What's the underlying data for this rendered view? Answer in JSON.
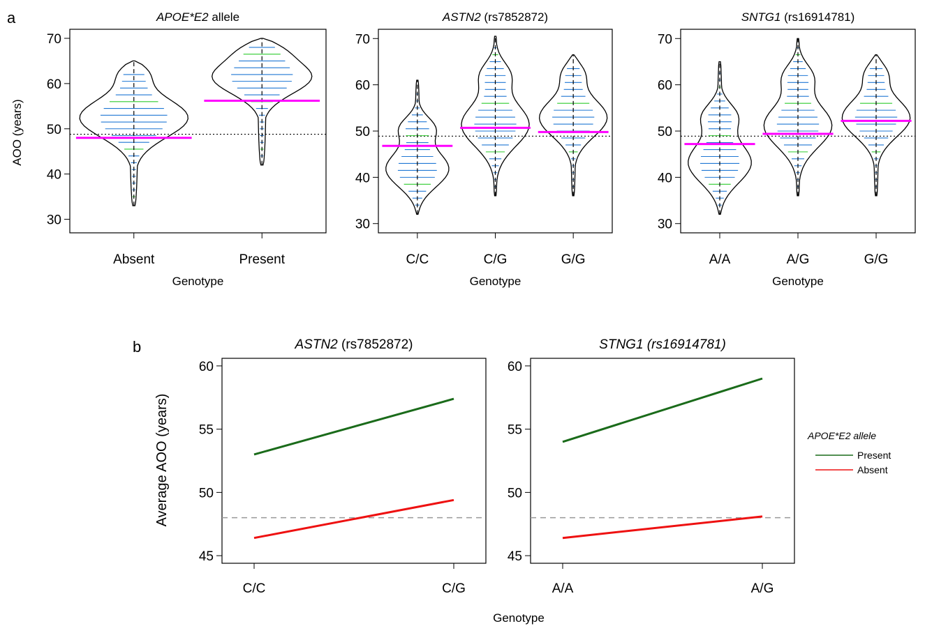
{
  "panel_labels": {
    "a": "a",
    "b": "b"
  },
  "shared": {
    "genotype_label": "Genotype",
    "ylabel_a": "AOO (years)",
    "ylabel_b": "Average AOO (years)",
    "colors": {
      "mean_line": "#ff00ff",
      "bean_line": "#1f77d4",
      "bean_line_alt": "#2ecc2e",
      "present": "#1a6b1a",
      "absent": "#ee1111",
      "reference": "#999999"
    }
  },
  "chart_data": [
    {
      "type": "violin",
      "title_italic": "APOE*E2",
      "title_rest": " allele",
      "xlabel": "Genotype",
      "ylabel": "AOO (years)",
      "ylim": [
        27,
        72
      ],
      "yticks": [
        30,
        40,
        50,
        60,
        70
      ],
      "overall_mean": 48.8,
      "categories": [
        "Absent",
        "Present"
      ],
      "means": [
        48.0,
        56.2
      ],
      "ranges": [
        [
          33,
          65
        ],
        [
          42,
          70
        ]
      ]
    },
    {
      "type": "violin",
      "title_italic": "ASTN2",
      "title_rest": " (rs7852872)",
      "xlabel": "Genotype",
      "ylabel": "",
      "ylim": [
        28,
        72
      ],
      "yticks": [
        30,
        40,
        50,
        60,
        70
      ],
      "overall_mean": 48.9,
      "categories": [
        "C/C",
        "C/G",
        "G/G"
      ],
      "means": [
        46.8,
        50.7,
        49.8
      ],
      "ranges": [
        [
          32,
          61
        ],
        [
          36,
          70.5
        ],
        [
          36,
          66.5
        ]
      ]
    },
    {
      "type": "violin",
      "title_italic": "SNTG1",
      "title_rest": " (rs16914781)",
      "xlabel": "Genotype",
      "ylabel": "",
      "ylim": [
        28,
        72
      ],
      "yticks": [
        30,
        40,
        50,
        60,
        70
      ],
      "overall_mean": 48.9,
      "categories": [
        "A/A",
        "A/G",
        "G/G"
      ],
      "means": [
        47.2,
        49.4,
        52.2
      ],
      "ranges": [
        [
          32,
          65
        ],
        [
          36,
          70
        ],
        [
          36,
          66.5
        ]
      ]
    },
    {
      "type": "line",
      "title_italic": "ASTN2",
      "title_rest": " (rs7852872)",
      "x": [
        "C/C",
        "C/G"
      ],
      "ylim": [
        44.4,
        60.6
      ],
      "yticks": [
        45,
        50,
        55,
        60
      ],
      "reference_line": 48.0,
      "series": [
        {
          "name": "Present",
          "values": [
            53.0,
            57.4
          ]
        },
        {
          "name": "Absent",
          "values": [
            46.4,
            49.4
          ]
        }
      ]
    },
    {
      "type": "line",
      "title_italic": "STNG1 (rs16914781)",
      "title_rest": "",
      "x": [
        "A/A",
        "A/G"
      ],
      "ylim": [
        44.4,
        60.6
      ],
      "yticks": [
        45,
        50,
        55,
        60
      ],
      "reference_line": 48.0,
      "series": [
        {
          "name": "Present",
          "values": [
            54.0,
            59.0
          ]
        },
        {
          "name": "Absent",
          "values": [
            46.4,
            48.1
          ]
        }
      ]
    }
  ],
  "legend": {
    "title": "APOE*E2 allele",
    "items": [
      {
        "name": "Present",
        "color": "#1a6b1a"
      },
      {
        "name": "Absent",
        "color": "#ee1111"
      }
    ]
  }
}
